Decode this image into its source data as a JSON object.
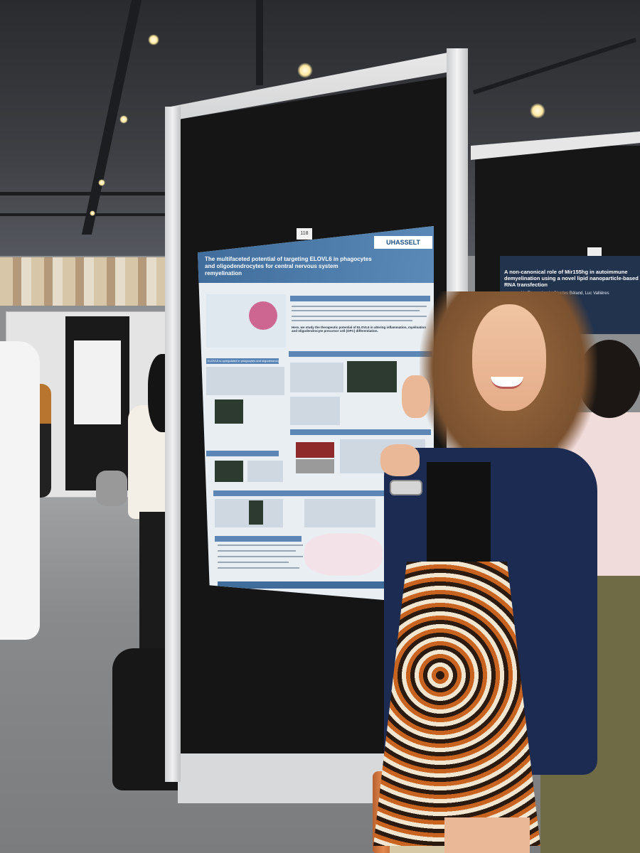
{
  "scene": {
    "description_tags": [
      "poster-session",
      "conference-hall",
      "presenter"
    ]
  },
  "main_poster": {
    "board_number": "118",
    "logo": "UHASSELT",
    "title": "The multifaceted potential of targeting ELOVL6 in phagocytes and oligodendrocytes for central nervous system remyelination",
    "sections": [
      "Background",
      "ELOVL6 is upregulated in phagocytes and oligodendrocytes",
      "ELOVL6 deficiency increases remyelination in an ex vivo organotypic brain slice cultures (BSCs)",
      "ELOVL6 deficiency enhances oligodendrocyte precursor",
      "ELOVL6 deficiency increases remyelination in in vivo cuprizone (fed) mice",
      "ELOVL6 deficiency decreases lipid load in phagocytes via ABCA1-mediated efflux and SPMs",
      "Conclusion"
    ],
    "hypothesis_line": "Here, we study the therapeutic potential of ELOVL6 in altering inflammation, myelination and oligodendrocyte precursor cell (OPC) differentiation."
  },
  "neighbor_poster": {
    "title": "A non-canonical role of Mir155hg in autoimmune demyelination using a novel lipid nanoparticle-based RNA transfection",
    "authors": "Yu Zhang, Louis-Charles Béland, Luc Vallières"
  },
  "colors": {
    "poster_header": "#3f6c9b",
    "jacket": "#1c2b52",
    "skirt_accent": "#c8641f"
  }
}
